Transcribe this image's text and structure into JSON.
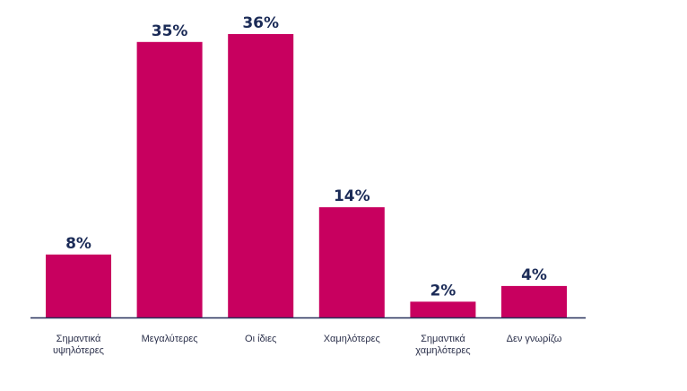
{
  "chart_data": {
    "type": "bar",
    "title": "",
    "xlabel": "",
    "ylabel": "",
    "ylim": [
      0,
      36
    ],
    "grid": false,
    "legend": "none",
    "categories": [
      [
        "Σημαντικά",
        "υψηλότερες"
      ],
      [
        "Μεγαλύτερες"
      ],
      [
        "Οι ίδιες"
      ],
      [
        "Χαμηλότερες"
      ],
      [
        "Σημαντικά",
        "χαμηλότερες"
      ],
      [
        "Δεν γνωρίζω"
      ]
    ],
    "values": [
      8,
      35,
      36,
      14,
      2,
      4
    ],
    "value_labels": [
      "8%",
      "35%",
      "36%",
      "14%",
      "2%",
      "4%"
    ],
    "colors": {
      "bar": "#c8005f",
      "value_text": "#1b2b57",
      "category_text": "#2a2f4a",
      "axis": "#26305a"
    }
  }
}
